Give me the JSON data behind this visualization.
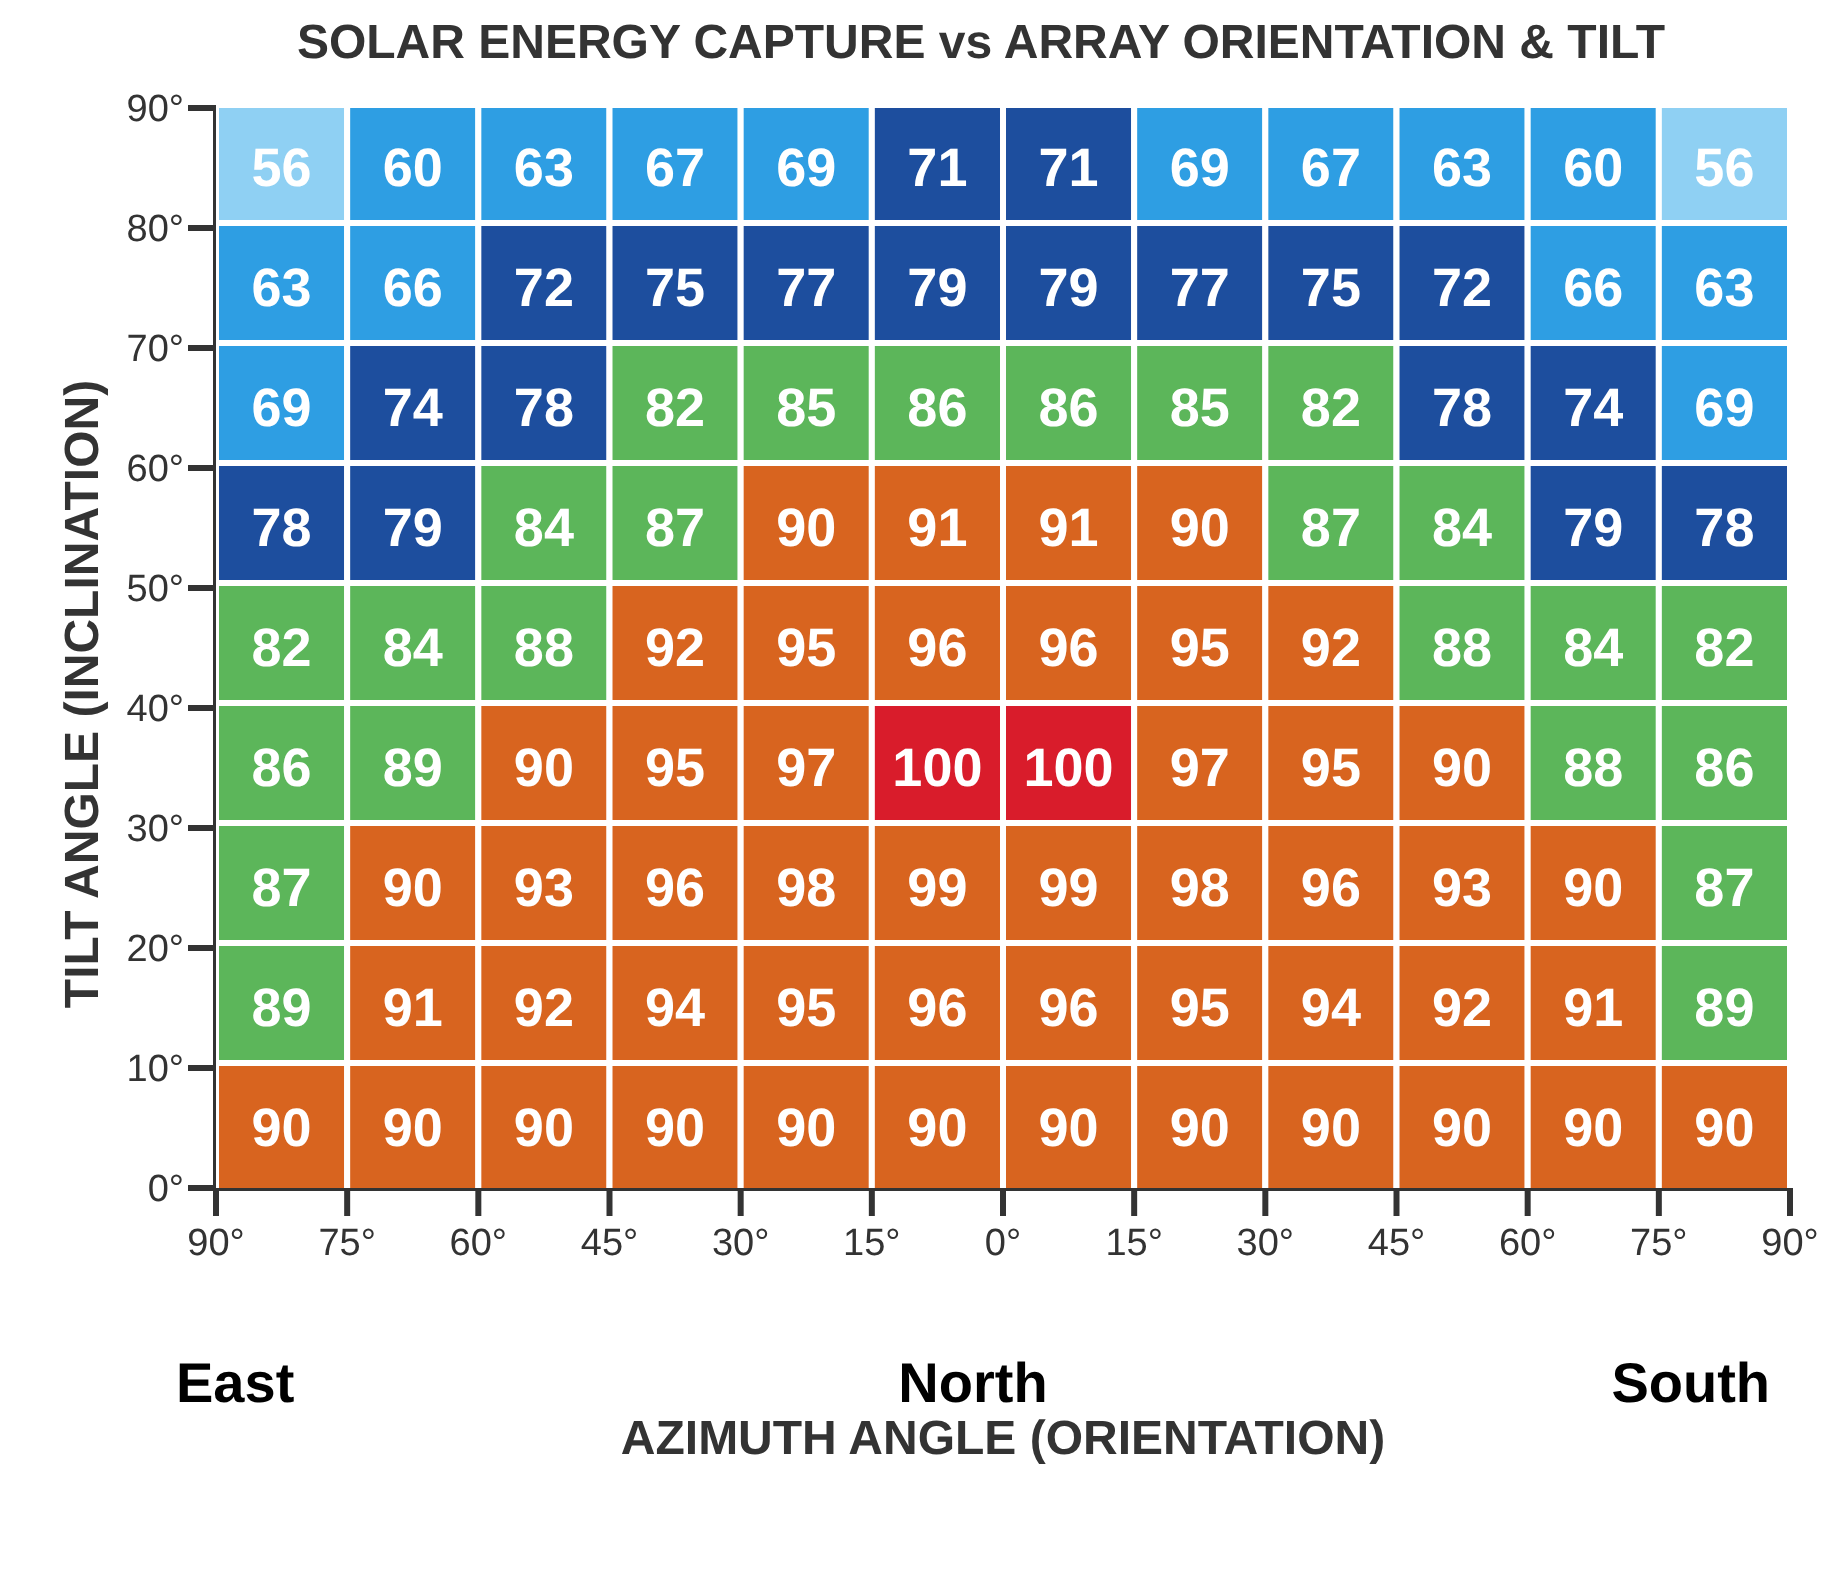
{
  "chart_data": {
    "type": "heatmap",
    "title": "SOLAR ENERGY CAPTURE vs ARRAY ORIENTATION & TILT",
    "xlabel": "AZIMUTH ANGLE (ORIENTATION)",
    "ylabel": "TILT ANGLE (INCLINATION)",
    "xlim": [
      -90,
      90
    ],
    "xticks": [
      {
        "value": -90,
        "label": "90°"
      },
      {
        "value": -75,
        "label": "75°"
      },
      {
        "value": -60,
        "label": "60°"
      },
      {
        "value": -45,
        "label": "45°"
      },
      {
        "value": -30,
        "label": "30°"
      },
      {
        "value": -15,
        "label": "15°"
      },
      {
        "value": 0,
        "label": "0°"
      },
      {
        "value": 15,
        "label": "15°"
      },
      {
        "value": 30,
        "label": "30°"
      },
      {
        "value": 45,
        "label": "45°"
      },
      {
        "value": 60,
        "label": "60°"
      },
      {
        "value": 75,
        "label": "75°"
      },
      {
        "value": 90,
        "label": "90°"
      }
    ],
    "ylim": [
      0,
      90
    ],
    "yticks": [
      {
        "value": 0,
        "label": "0°"
      },
      {
        "value": 10,
        "label": "10°"
      },
      {
        "value": 20,
        "label": "20°"
      },
      {
        "value": 30,
        "label": "30°"
      },
      {
        "value": 40,
        "label": "40°"
      },
      {
        "value": 50,
        "label": "50°"
      },
      {
        "value": 60,
        "label": "60°"
      },
      {
        "value": 70,
        "label": "70°"
      },
      {
        "value": 80,
        "label": "80°"
      },
      {
        "value": 90,
        "label": "90°"
      }
    ],
    "cells": [
      [
        56,
        60,
        63,
        67,
        69,
        71,
        71,
        69,
        67,
        63,
        60,
        56
      ],
      [
        63,
        66,
        72,
        75,
        77,
        79,
        79,
        77,
        75,
        72,
        66,
        63
      ],
      [
        69,
        74,
        78,
        82,
        85,
        86,
        86,
        85,
        82,
        78,
        74,
        69
      ],
      [
        78,
        79,
        84,
        87,
        90,
        91,
        91,
        90,
        87,
        84,
        79,
        78
      ],
      [
        82,
        84,
        88,
        92,
        95,
        96,
        96,
        95,
        92,
        88,
        84,
        82
      ],
      [
        86,
        89,
        90,
        95,
        97,
        100,
        100,
        97,
        95,
        90,
        88,
        86
      ],
      [
        87,
        90,
        93,
        96,
        98,
        99,
        99,
        98,
        96,
        93,
        90,
        87
      ],
      [
        89,
        91,
        92,
        94,
        95,
        96,
        96,
        95,
        94,
        92,
        91,
        89
      ],
      [
        90,
        90,
        90,
        90,
        90,
        90,
        90,
        90,
        90,
        90,
        90,
        90
      ]
    ],
    "colors": [
      [
        "#8fd0f3",
        "#2e9ee3",
        "#2e9ee3",
        "#2e9ee3",
        "#2e9ee3",
        "#1d4e9e",
        "#1d4e9e",
        "#2e9ee3",
        "#2e9ee3",
        "#2e9ee3",
        "#2e9ee3",
        "#8fd0f3"
      ],
      [
        "#2e9ee3",
        "#2e9ee3",
        "#1d4e9e",
        "#1d4e9e",
        "#1d4e9e",
        "#1d4e9e",
        "#1d4e9e",
        "#1d4e9e",
        "#1d4e9e",
        "#1d4e9e",
        "#2e9ee3",
        "#2e9ee3"
      ],
      [
        "#2e9ee3",
        "#1d4e9e",
        "#1d4e9e",
        "#5cb65a",
        "#5cb65a",
        "#5cb65a",
        "#5cb65a",
        "#5cb65a",
        "#5cb65a",
        "#1d4e9e",
        "#1d4e9e",
        "#2e9ee3"
      ],
      [
        "#1d4e9e",
        "#1d4e9e",
        "#5cb65a",
        "#5cb65a",
        "#d8641f",
        "#d8641f",
        "#d8641f",
        "#d8641f",
        "#5cb65a",
        "#5cb65a",
        "#1d4e9e",
        "#1d4e9e"
      ],
      [
        "#5cb65a",
        "#5cb65a",
        "#5cb65a",
        "#d8641f",
        "#d8641f",
        "#d8641f",
        "#d8641f",
        "#d8641f",
        "#d8641f",
        "#5cb65a",
        "#5cb65a",
        "#5cb65a"
      ],
      [
        "#5cb65a",
        "#5cb65a",
        "#d8641f",
        "#d8641f",
        "#d8641f",
        "#d91c2b",
        "#d91c2b",
        "#d8641f",
        "#d8641f",
        "#d8641f",
        "#5cb65a",
        "#5cb65a"
      ],
      [
        "#5cb65a",
        "#d8641f",
        "#d8641f",
        "#d8641f",
        "#d8641f",
        "#d8641f",
        "#d8641f",
        "#d8641f",
        "#d8641f",
        "#d8641f",
        "#d8641f",
        "#5cb65a"
      ],
      [
        "#5cb65a",
        "#d8641f",
        "#d8641f",
        "#d8641f",
        "#d8641f",
        "#d8641f",
        "#d8641f",
        "#d8641f",
        "#d8641f",
        "#d8641f",
        "#d8641f",
        "#5cb65a"
      ],
      [
        "#d8641f",
        "#d8641f",
        "#d8641f",
        "#d8641f",
        "#d8641f",
        "#d8641f",
        "#d8641f",
        "#d8641f",
        "#d8641f",
        "#d8641f",
        "#d8641f",
        "#d8641f"
      ]
    ],
    "data_labels": true,
    "grid": false,
    "annotations": [
      "East",
      "North",
      "South"
    ]
  }
}
